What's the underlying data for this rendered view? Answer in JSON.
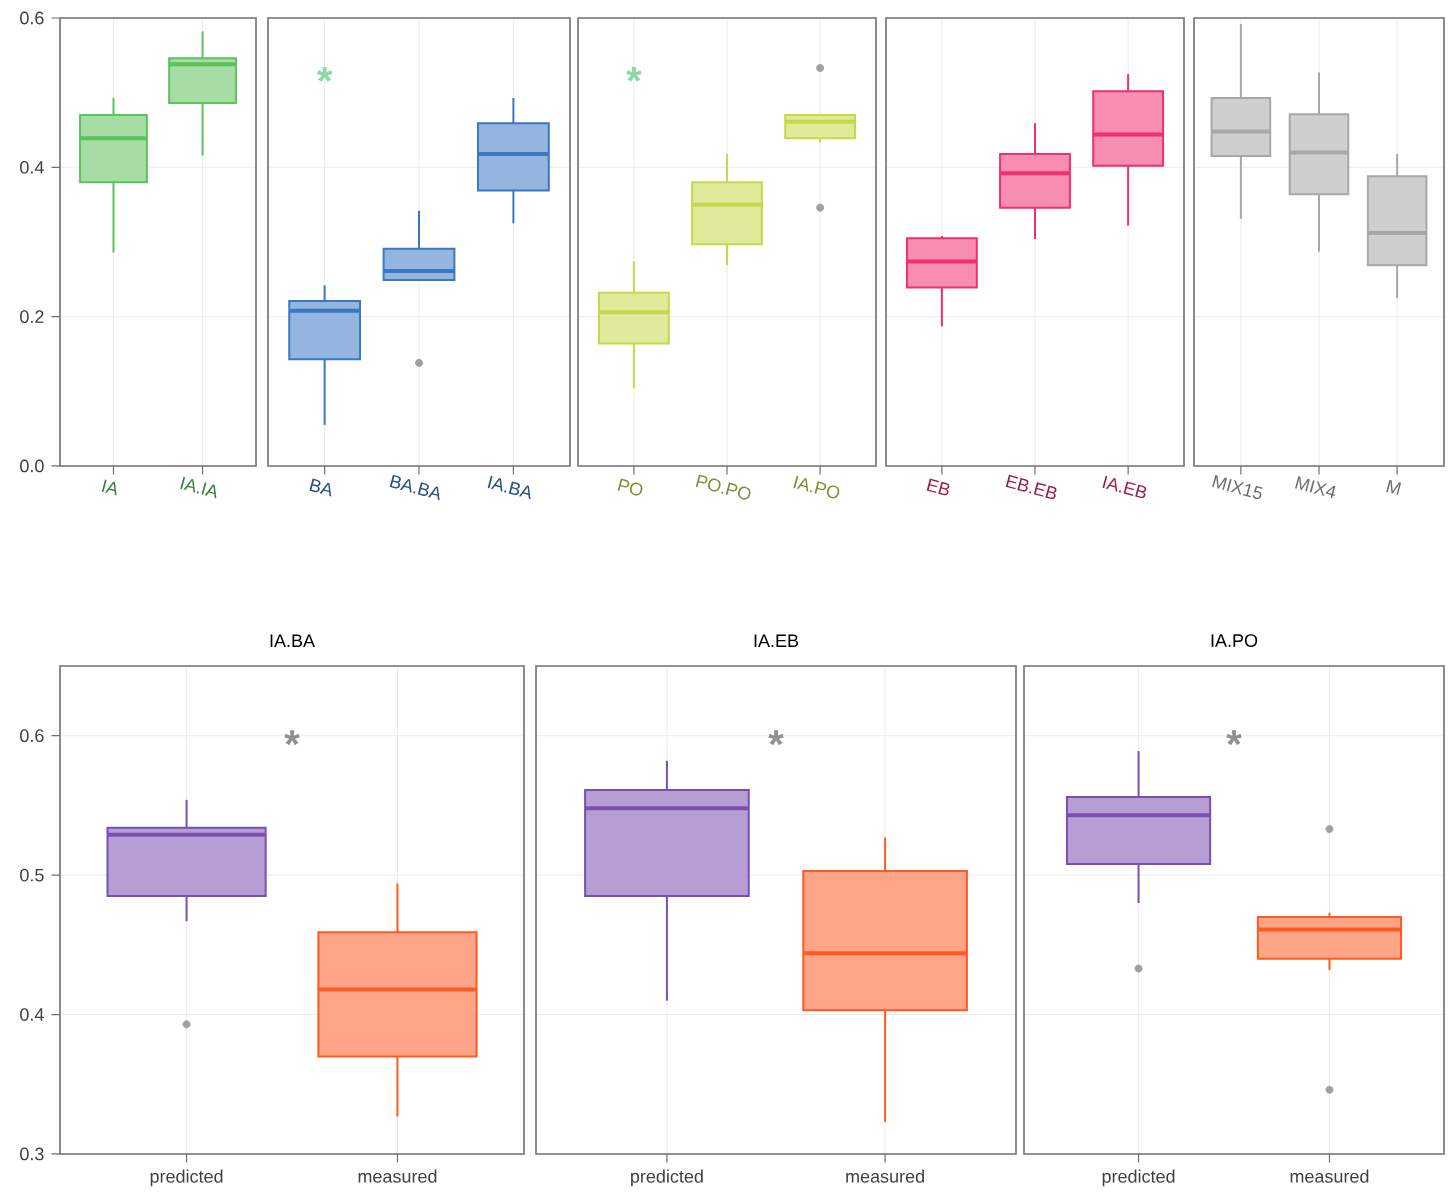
{
  "chart_data": [
    {
      "type": "box",
      "categories": [
        "IA",
        "IA.IA"
      ],
      "colors": [
        "#5cc25c",
        "#5cc25c"
      ],
      "ylim": [
        0,
        0.6
      ],
      "yticks": [
        {
          "value": 0,
          "label": "0.0"
        },
        0.2,
        0.4,
        0.6
      ],
      "grid": true,
      "boxes": [
        {
          "low": 0.286,
          "q1": 0.38,
          "median": 0.439,
          "q3": 0.47,
          "high": 0.493
        },
        {
          "low": 0.416,
          "q1": 0.486,
          "median": 0.538,
          "q3": 0.546,
          "high": 0.582
        }
      ]
    },
    {
      "type": "box",
      "categories": [
        "BA",
        "BA.BA",
        "IA.BA"
      ],
      "colors": [
        "#3a78c4",
        "#3a78c4",
        "#3a78c4"
      ],
      "ylim": [
        0,
        0.6
      ],
      "yticks": [
        0.2,
        0.4,
        0.6
      ],
      "grid": true,
      "tick_labels": "x",
      "annotations": [
        "*"
      ],
      "boxes": [
        {
          "low": 0.055,
          "q1": 0.143,
          "median": 0.208,
          "q3": 0.221,
          "high": 0.242
        },
        {
          "low": 0.249,
          "q1": 0.249,
          "median": 0.261,
          "q3": 0.291,
          "high": 0.342,
          "outliers": [
            0.138
          ]
        },
        {
          "low": 0.325,
          "q1": 0.369,
          "median": 0.418,
          "q3": 0.459,
          "high": 0.493
        }
      ]
    },
    {
      "type": "box",
      "categories": [
        "PO",
        "PO.PO",
        "IA.PO"
      ],
      "colors": [
        "#c5d94a",
        "#c5d94a",
        "#c5d94a"
      ],
      "ylim": [
        0,
        0.6
      ],
      "yticks": [
        0.2,
        0.4,
        0.6
      ],
      "grid": true,
      "tick_labels": "x",
      "annotations": [
        "*"
      ],
      "boxes": [
        {
          "low": 0.104,
          "q1": 0.164,
          "median": 0.206,
          "q3": 0.232,
          "high": 0.274
        },
        {
          "low": 0.269,
          "q1": 0.297,
          "median": 0.35,
          "q3": 0.38,
          "high": 0.418
        },
        {
          "low": 0.433,
          "q1": 0.439,
          "median": 0.461,
          "q3": 0.47,
          "high": 0.47,
          "outliers": [
            0.533,
            0.346
          ]
        }
      ]
    },
    {
      "type": "box",
      "categories": [
        "EB",
        "EB.EB",
        "IA.EB"
      ],
      "colors": [
        "#f0306e",
        "#f0306e",
        "#f0306e"
      ],
      "ylim": [
        0,
        0.6
      ],
      "yticks": [
        0.2,
        0.4,
        0.6
      ],
      "grid": true,
      "tick_labels": "x",
      "boxes": [
        {
          "low": 0.187,
          "q1": 0.239,
          "median": 0.274,
          "q3": 0.305,
          "high": 0.308
        },
        {
          "low": 0.304,
          "q1": 0.346,
          "median": 0.392,
          "q3": 0.418,
          "high": 0.459
        },
        {
          "low": 0.322,
          "q1": 0.402,
          "median": 0.444,
          "q3": 0.502,
          "high": 0.525
        }
      ]
    },
    {
      "type": "box",
      "categories": [
        "MIX15",
        "MIX4",
        "M"
      ],
      "colors": [
        "#a8a8a8",
        "#a8a8a8",
        "#a8a8a8"
      ],
      "ylim": [
        0,
        0.6
      ],
      "yticks": [
        0.2,
        0.4,
        0.6
      ],
      "grid": true,
      "tick_labels": "x",
      "boxes": [
        {
          "low": 0.331,
          "q1": 0.415,
          "median": 0.448,
          "q3": 0.493,
          "high": 0.592
        },
        {
          "low": 0.287,
          "q1": 0.364,
          "median": 0.42,
          "q3": 0.471,
          "high": 0.527
        },
        {
          "low": 0.225,
          "q1": 0.269,
          "median": 0.312,
          "q3": 0.388,
          "high": 0.418
        }
      ]
    },
    {
      "type": "box",
      "title": "IA.BA",
      "categories": [
        "predicted",
        "measured"
      ],
      "colors": [
        "#7a4fb0",
        "#ff5a24"
      ],
      "ylim": [
        0.3,
        0.65
      ],
      "yticks": [
        0.3,
        0.4,
        0.5,
        0.6
      ],
      "grid": true,
      "annotations": [
        "*"
      ],
      "boxes": [
        {
          "low": 0.467,
          "q1": 0.485,
          "median": 0.529,
          "q3": 0.534,
          "high": 0.554,
          "outliers": [
            0.393
          ]
        },
        {
          "low": 0.327,
          "q1": 0.37,
          "median": 0.418,
          "q3": 0.459,
          "high": 0.494
        }
      ]
    },
    {
      "type": "box",
      "title": "IA.EB",
      "categories": [
        "predicted",
        "measured"
      ],
      "colors": [
        "#7a4fb0",
        "#ff5a24"
      ],
      "ylim": [
        0.3,
        0.65
      ],
      "yticks": [
        0.3,
        0.4,
        0.5,
        0.6
      ],
      "grid": true,
      "tick_labels": "x",
      "annotations": [
        "*"
      ],
      "boxes": [
        {
          "low": 0.41,
          "q1": 0.485,
          "median": 0.548,
          "q3": 0.561,
          "high": 0.582
        },
        {
          "low": 0.323,
          "q1": 0.403,
          "median": 0.444,
          "q3": 0.503,
          "high": 0.527
        }
      ]
    },
    {
      "type": "box",
      "title": "IA.PO",
      "categories": [
        "predicted",
        "measured"
      ],
      "colors": [
        "#7a4fb0",
        "#ff5a24"
      ],
      "ylim": [
        0.3,
        0.65
      ],
      "yticks": [
        0.3,
        0.4,
        0.5,
        0.6
      ],
      "grid": true,
      "tick_labels": "x",
      "annotations": [
        "*"
      ],
      "boxes": [
        {
          "low": 0.48,
          "q1": 0.508,
          "median": 0.543,
          "q3": 0.556,
          "high": 0.589,
          "outliers": [
            0.433
          ]
        },
        {
          "low": 0.432,
          "q1": 0.44,
          "median": 0.461,
          "q3": 0.47,
          "high": 0.473,
          "outliers": [
            0.533,
            0.346
          ]
        }
      ]
    }
  ]
}
